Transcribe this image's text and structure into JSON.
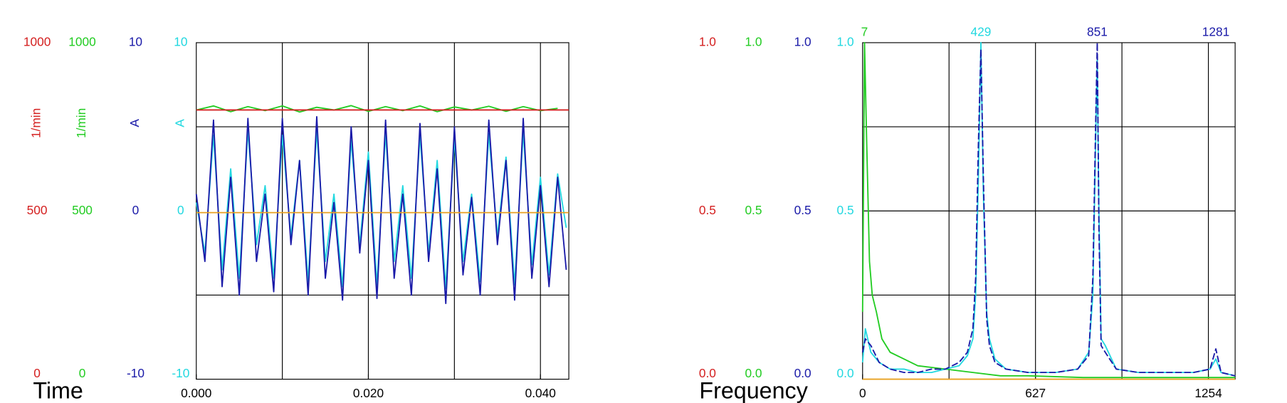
{
  "chart_data": [
    {
      "type": "line",
      "title": "Time",
      "xlim": [
        0,
        0.0433
      ],
      "xticks": [
        {
          "value": 0,
          "label": "0.000"
        },
        {
          "value": 0.02,
          "label": "0.020"
        },
        {
          "value": 0.04,
          "label": "0.040"
        }
      ],
      "xgrid": [
        0.01,
        0.02,
        0.03,
        0.04
      ],
      "ygrid": [
        250,
        750
      ],
      "axes": [
        {
          "color": "#d42020",
          "label": "1/min",
          "ylim": [
            0,
            1000
          ],
          "yticks": [
            0,
            500,
            1000
          ]
        },
        {
          "color": "#22cc22",
          "label": "1/min",
          "ylim": [
            0,
            1000
          ],
          "yticks": [
            0,
            500,
            1000
          ]
        },
        {
          "color": "#1a1aa8",
          "label": "A",
          "ylim": [
            -10,
            10
          ],
          "yticks": [
            -10,
            0,
            10
          ]
        },
        {
          "color": "#22d8e0",
          "label": "A",
          "ylim": [
            -10,
            10
          ],
          "yticks": [
            -10,
            0,
            10
          ]
        }
      ],
      "series": [
        {
          "axis": 3,
          "color": "#22d8e0",
          "x": [
            0,
            0.001,
            0.002,
            0.003,
            0.004,
            0.005,
            0.006,
            0.007,
            0.008,
            0.009,
            0.01,
            0.011,
            0.012,
            0.013,
            0.014,
            0.015,
            0.016,
            0.017,
            0.018,
            0.019,
            0.02,
            0.021,
            0.022,
            0.023,
            0.024,
            0.025,
            0.026,
            0.027,
            0.028,
            0.029,
            0.03,
            0.031,
            0.032,
            0.033,
            0.034,
            0.035,
            0.036,
            0.037,
            0.038,
            0.039,
            0.04,
            0.041,
            0.042,
            0.043
          ],
          "values": [
            0.5,
            -2.5,
            4.5,
            -3.5,
            2.5,
            -4,
            4.8,
            -2,
            1.5,
            -4,
            4.5,
            -1.5,
            3,
            -4.2,
            4.8,
            -3,
            1,
            -4.5,
            4.2,
            -2,
            3.5,
            -4.4,
            4.6,
            -3,
            1.5,
            -4,
            4.5,
            -2.5,
            3,
            -4.6,
            4.3,
            -3,
            1,
            -4.2,
            4.6,
            -1.5,
            3.2,
            -4.4,
            4.7,
            -3.2,
            2,
            -3.8,
            2.2,
            -1
          ]
        },
        {
          "axis": 2,
          "color": "#1a1aa8",
          "x": [
            0,
            0.001,
            0.002,
            0.003,
            0.004,
            0.005,
            0.006,
            0.007,
            0.008,
            0.009,
            0.01,
            0.011,
            0.012,
            0.013,
            0.014,
            0.015,
            0.016,
            0.017,
            0.018,
            0.019,
            0.02,
            0.021,
            0.022,
            0.023,
            0.024,
            0.025,
            0.026,
            0.027,
            0.028,
            0.029,
            0.03,
            0.031,
            0.032,
            0.033,
            0.034,
            0.035,
            0.036,
            0.037,
            0.038,
            0.039,
            0.04,
            0.041,
            0.042,
            0.043
          ],
          "values": [
            1,
            -3,
            5.4,
            -4.5,
            2,
            -5,
            5.5,
            -3,
            1,
            -4.8,
            5.5,
            -2,
            3,
            -5,
            5.6,
            -4,
            0.5,
            -5.3,
            5,
            -2.5,
            3,
            -5.2,
            5.4,
            -4,
            1,
            -5,
            5.2,
            -3,
            2.5,
            -5.5,
            5,
            -3.8,
            0.8,
            -5,
            5.4,
            -2,
            3,
            -5.3,
            5.5,
            -4,
            1.5,
            -4.5,
            2,
            -3.5
          ]
        },
        {
          "axis": 1,
          "color": "#22cc22",
          "x": [
            0,
            0.002,
            0.004,
            0.006,
            0.008,
            0.01,
            0.012,
            0.014,
            0.016,
            0.018,
            0.02,
            0.022,
            0.024,
            0.026,
            0.028,
            0.03,
            0.032,
            0.034,
            0.036,
            0.038,
            0.04,
            0.042
          ],
          "values": [
            800,
            812,
            795,
            810,
            798,
            812,
            794,
            808,
            800,
            813,
            796,
            810,
            798,
            812,
            795,
            809,
            800,
            811,
            796,
            810,
            798,
            805
          ]
        },
        {
          "axis": 0,
          "color": "#d42020",
          "x": [
            0,
            0.0433
          ],
          "values": [
            800,
            800
          ]
        },
        {
          "axis": 0,
          "color": "#e8a020",
          "x": [
            0,
            0.0433
          ],
          "values": [
            495,
            495
          ]
        }
      ]
    },
    {
      "type": "line",
      "title": "Frequency",
      "xlim": [
        0,
        1351
      ],
      "xticks": [
        0,
        627,
        1254
      ],
      "xgrid": [
        313.5,
        627,
        940.5,
        1254
      ],
      "ygrid": [
        0.25,
        0.5,
        0.75
      ],
      "axes": [
        {
          "color": "#d42020",
          "ylim": [
            0,
            1
          ],
          "yticks": [
            {
              "value": 0,
              "label": "0.0"
            },
            {
              "value": 0.5,
              "label": "0.5"
            },
            {
              "value": 1,
              "label": "1.0"
            }
          ]
        },
        {
          "color": "#22cc22",
          "ylim": [
            0,
            1
          ],
          "yticks": [
            {
              "value": 0,
              "label": "0.0"
            },
            {
              "value": 0.5,
              "label": "0.5"
            },
            {
              "value": 1,
              "label": "1.0"
            }
          ]
        },
        {
          "color": "#1a1aa8",
          "ylim": [
            0,
            1
          ],
          "yticks": [
            {
              "value": 0,
              "label": "0.0"
            },
            {
              "value": 0.5,
              "label": "0.5"
            },
            {
              "value": 1,
              "label": "1.0"
            }
          ]
        },
        {
          "color": "#22d8e0",
          "ylim": [
            0,
            1
          ],
          "yticks": [
            {
              "value": 0,
              "label": "0.0"
            },
            {
              "value": 0.5,
              "label": "0.5"
            },
            {
              "value": 1,
              "label": "1.0"
            }
          ]
        }
      ],
      "peak_labels": [
        {
          "value": 7,
          "color": "#22cc22"
        },
        {
          "value": 429,
          "color": "#22d8e0"
        },
        {
          "value": 851,
          "color": "#1a1aa8"
        },
        {
          "value": 1281,
          "color": "#1a1aa8"
        }
      ],
      "series": [
        {
          "axis": 1,
          "color": "#22cc22",
          "x": [
            0,
            7,
            15,
            25,
            35,
            50,
            70,
            100,
            150,
            200,
            300,
            400,
            500,
            600,
            800,
            1000,
            1351
          ],
          "values": [
            0.2,
            1.0,
            0.7,
            0.35,
            0.25,
            0.2,
            0.12,
            0.08,
            0.06,
            0.04,
            0.03,
            0.02,
            0.01,
            0.01,
            0.005,
            0.005,
            0.005
          ]
        },
        {
          "axis": 3,
          "color": "#22d8e0",
          "x": [
            0,
            10,
            30,
            60,
            100,
            150,
            200,
            250,
            300,
            350,
            380,
            400,
            410,
            420,
            429,
            438,
            450,
            460,
            480,
            520,
            600,
            700,
            780,
            820,
            835,
            845,
            851,
            857,
            865,
            880,
            920,
            1000,
            1100,
            1200,
            1260,
            1281,
            1300,
            1351
          ],
          "values": [
            0.05,
            0.15,
            0.08,
            0.05,
            0.03,
            0.03,
            0.02,
            0.02,
            0.03,
            0.04,
            0.07,
            0.12,
            0.25,
            0.6,
            1.0,
            0.55,
            0.2,
            0.12,
            0.06,
            0.03,
            0.02,
            0.02,
            0.03,
            0.08,
            0.25,
            0.7,
            0.95,
            0.5,
            0.12,
            0.1,
            0.03,
            0.02,
            0.02,
            0.02,
            0.03,
            0.06,
            0.02,
            0.01
          ]
        },
        {
          "axis": 2,
          "color": "#1a1aa8",
          "dash": true,
          "x": [
            0,
            10,
            30,
            60,
            100,
            150,
            200,
            250,
            300,
            350,
            380,
            400,
            410,
            420,
            429,
            438,
            450,
            460,
            480,
            520,
            600,
            700,
            780,
            820,
            835,
            845,
            851,
            857,
            865,
            880,
            920,
            1000,
            1100,
            1200,
            1260,
            1281,
            1300,
            1351
          ],
          "values": [
            0.08,
            0.12,
            0.1,
            0.05,
            0.03,
            0.02,
            0.02,
            0.03,
            0.03,
            0.05,
            0.08,
            0.15,
            0.3,
            0.7,
            0.98,
            0.6,
            0.18,
            0.1,
            0.05,
            0.03,
            0.02,
            0.02,
            0.03,
            0.07,
            0.3,
            0.75,
            1.0,
            0.45,
            0.1,
            0.08,
            0.03,
            0.02,
            0.02,
            0.02,
            0.03,
            0.09,
            0.02,
            0.01
          ]
        },
        {
          "axis": 0,
          "color": "#e8a020",
          "x": [
            0,
            1351
          ],
          "values": [
            0,
            0
          ]
        }
      ]
    }
  ]
}
